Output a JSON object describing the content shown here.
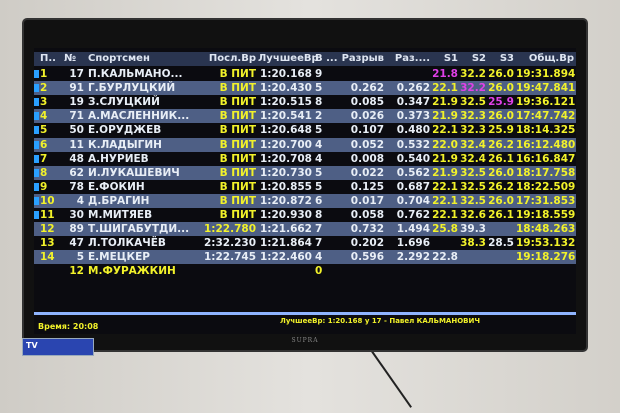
{
  "header": [
    "П..",
    "№",
    "Спортсмен",
    "Посл.Вр",
    "ЛучшееВр",
    "В ...",
    "Разрыв",
    "Раз....",
    "S1",
    "S2",
    "S3",
    "Общ.Вр"
  ],
  "rows": [
    [
      "1",
      "17",
      "П.КАЛЬМАНО...",
      "В ПИТ",
      "1:20.168",
      "9",
      "",
      "",
      "21.8",
      "32.2",
      "26.0",
      "19:31.894"
    ],
    [
      "2",
      "91",
      "Г.БУРЛУЦКИЙ",
      "В ПИТ",
      "1:20.430",
      "5",
      "0.262",
      "0.262",
      "22.1",
      "32.2",
      "26.0",
      "19:47.841"
    ],
    [
      "3",
      "19",
      "З.СЛУЦКИЙ",
      "В ПИТ",
      "1:20.515",
      "8",
      "0.085",
      "0.347",
      "21.9",
      "32.5",
      "25.9",
      "19:36.121"
    ],
    [
      "4",
      "71",
      "А.МАСЛЕННИК...",
      "В ПИТ",
      "1:20.541",
      "2",
      "0.026",
      "0.373",
      "21.9",
      "32.3",
      "26.0",
      "17:47.742"
    ],
    [
      "5",
      "50",
      "Е.ОРУДЖЕВ",
      "В ПИТ",
      "1:20.648",
      "5",
      "0.107",
      "0.480",
      "22.1",
      "32.3",
      "25.9",
      "18:14.325"
    ],
    [
      "6",
      "11",
      "К.ЛАДЫГИН",
      "В ПИТ",
      "1:20.700",
      "4",
      "0.052",
      "0.532",
      "22.0",
      "32.4",
      "26.2",
      "16:12.480"
    ],
    [
      "7",
      "48",
      "А.НУРИЕВ",
      "В ПИТ",
      "1:20.708",
      "4",
      "0.008",
      "0.540",
      "21.9",
      "32.4",
      "26.1",
      "16:16.847"
    ],
    [
      "8",
      "62",
      "И.ЛУКАШЕВИЧ",
      "В ПИТ",
      "1:20.730",
      "5",
      "0.022",
      "0.562",
      "21.9",
      "32.5",
      "26.0",
      "18:17.758"
    ],
    [
      "9",
      "78",
      "Е.ФОКИН",
      "В ПИТ",
      "1:20.855",
      "5",
      "0.125",
      "0.687",
      "22.1",
      "32.5",
      "26.2",
      "18:22.509"
    ],
    [
      "10",
      "4",
      "Д.БРАГИН",
      "В ПИТ",
      "1:20.872",
      "6",
      "0.017",
      "0.704",
      "22.1",
      "32.5",
      "26.0",
      "17:31.853"
    ],
    [
      "11",
      "30",
      "М.МИТЯЕВ",
      "В ПИТ",
      "1:20.930",
      "8",
      "0.058",
      "0.762",
      "22.1",
      "32.6",
      "26.1",
      "19:18.559"
    ],
    [
      "12",
      "89",
      "Т.ШИГАБУТДИ...",
      "1:22.780",
      "1:21.662",
      "7",
      "0.732",
      "1.494",
      "25.8",
      "39.3",
      "",
      "18:48.263"
    ],
    [
      "13",
      "47",
      "Л.ТОЛКАЧЁВ",
      "2:32.230",
      "1:21.864",
      "7",
      "0.202",
      "1.696",
      "",
      "38.3",
      "28.5",
      "19:53.132"
    ],
    [
      "14",
      "5",
      "Е.МЕЦКЕР",
      "1:22.745",
      "1:22.460",
      "4",
      "0.596",
      "2.292",
      "22.8",
      "",
      "",
      "19:18.276"
    ],
    [
      "",
      "12",
      "М.ФУРАЖКИН",
      "",
      "",
      "0",
      "",
      "",
      "",
      "",
      "",
      ""
    ]
  ],
  "in_pit_rows": 11,
  "sector_colors": [
    [
      "m",
      "y",
      "y"
    ],
    [
      "y",
      "m",
      "y"
    ],
    [
      "y",
      "y",
      "m"
    ],
    [
      "y",
      "y",
      "y"
    ],
    [
      "y",
      "y",
      "y"
    ],
    [
      "y",
      "y",
      "y"
    ],
    [
      "y",
      "y",
      "y"
    ],
    [
      "y",
      "y",
      "y"
    ],
    [
      "y",
      "y",
      "y"
    ],
    [
      "y",
      "y",
      "y"
    ],
    [
      "y",
      "y",
      "y"
    ],
    [
      "y",
      "w",
      "w"
    ],
    [
      "w",
      "y",
      "w"
    ],
    [
      "w",
      "w",
      "w"
    ],
    [
      "w",
      "w",
      "w"
    ]
  ],
  "colors": {
    "yellow": "#f2f22a",
    "purple": "#e040e8",
    "row_alt": "#4e5f85"
  },
  "footer": {
    "best_lap": "ЛучшееВр: 1:20.168 у 17 - Павел КАЛЬМАНОВИЧ",
    "time": "Время: 20:08"
  },
  "brand": "SUPRA"
}
